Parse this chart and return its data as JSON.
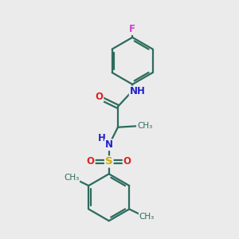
{
  "background_color": "#ebebeb",
  "bond_color": "#2d6b5e",
  "N_color": "#2222cc",
  "O_color": "#dd2222",
  "S_color": "#ccaa00",
  "F_color": "#cc44cc",
  "line_width": 1.6,
  "font_size": 8.5,
  "figsize": [
    3.0,
    3.0
  ],
  "dpi": 100,
  "xlim": [
    0,
    10
  ],
  "ylim": [
    0,
    10
  ]
}
